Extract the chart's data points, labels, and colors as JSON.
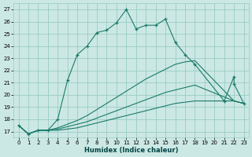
{
  "xlabel": "Humidex (Indice chaleur)",
  "bg_color": "#cce8e4",
  "grid_color": "#99ccc4",
  "line_color": "#1a7a6a",
  "xlim": [
    -0.5,
    23.5
  ],
  "ylim": [
    16.5,
    27.5
  ],
  "yticks": [
    17,
    18,
    19,
    20,
    21,
    22,
    23,
    24,
    25,
    26,
    27
  ],
  "xticks": [
    0,
    1,
    2,
    3,
    4,
    5,
    6,
    7,
    8,
    9,
    10,
    11,
    12,
    13,
    14,
    15,
    16,
    17,
    18,
    19,
    20,
    21,
    22,
    23
  ],
  "line1_y": [
    17.5,
    16.8,
    17.1,
    17.1,
    18.0,
    21.2,
    23.3,
    24.0,
    25.1,
    25.3,
    25.9,
    27.0,
    25.4,
    25.7,
    25.7,
    26.2,
    24.3,
    23.3,
    22.5,
    19.5,
    21.5,
    20.9,
    19.3
  ],
  "line1_x": [
    0,
    1,
    2,
    3,
    4,
    5,
    6,
    7,
    8,
    9,
    10,
    11,
    12,
    13,
    14,
    15,
    16,
    17,
    18,
    21,
    22,
    22,
    23
  ],
  "line2_y": [
    17.5,
    16.8,
    17.1,
    17.1,
    17.3,
    17.6,
    17.9,
    18.3,
    18.8,
    19.3,
    19.8,
    20.3,
    20.8,
    21.3,
    21.7,
    22.1,
    22.5,
    22.7,
    22.8,
    19.5,
    19.3
  ],
  "line2_x": [
    0,
    1,
    2,
    3,
    4,
    5,
    6,
    7,
    8,
    9,
    10,
    11,
    12,
    13,
    14,
    15,
    16,
    17,
    18,
    22,
    23
  ],
  "line3_y": [
    17.5,
    16.8,
    17.1,
    17.1,
    17.2,
    17.4,
    17.6,
    17.8,
    18.1,
    18.4,
    18.7,
    19.0,
    19.3,
    19.6,
    19.9,
    20.2,
    20.4,
    20.6,
    20.8,
    19.5,
    19.3
  ],
  "line3_x": [
    0,
    1,
    2,
    3,
    4,
    5,
    6,
    7,
    8,
    9,
    10,
    11,
    12,
    13,
    14,
    15,
    16,
    17,
    18,
    22,
    23
  ],
  "line4_y": [
    17.5,
    16.8,
    17.1,
    17.1,
    17.1,
    17.2,
    17.3,
    17.5,
    17.7,
    17.9,
    18.1,
    18.3,
    18.5,
    18.7,
    18.9,
    19.1,
    19.3,
    19.4,
    19.5,
    19.5,
    19.3
  ],
  "line4_x": [
    0,
    1,
    2,
    3,
    4,
    5,
    6,
    7,
    8,
    9,
    10,
    11,
    12,
    13,
    14,
    15,
    16,
    17,
    18,
    22,
    23
  ]
}
